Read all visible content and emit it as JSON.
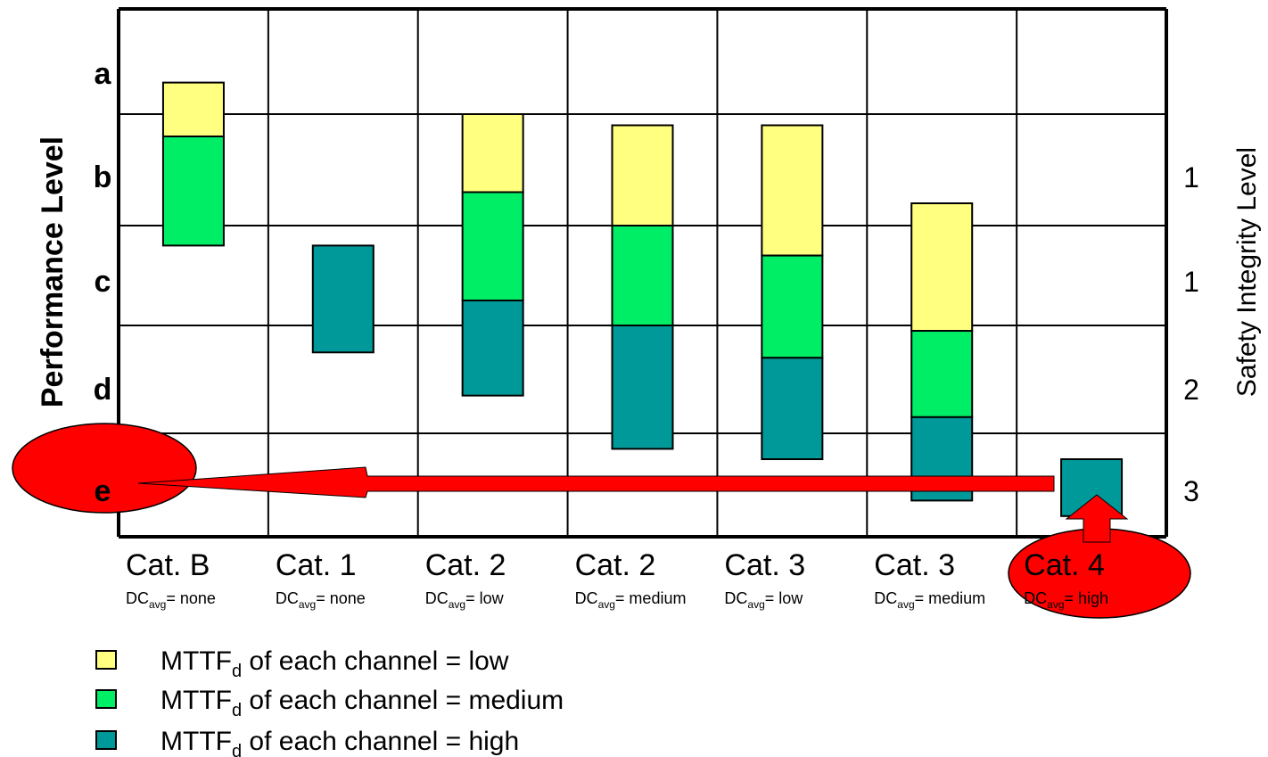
{
  "chart_data": {
    "type": "bar",
    "subtype": "floating-stacked-range",
    "y_axis_left": {
      "title": "Performance Level",
      "levels": [
        "a",
        "b",
        "c",
        "d",
        "e"
      ]
    },
    "y_axis_right": {
      "title": "Safety Integrity Level",
      "labels": [
        "1",
        "1",
        "2",
        "3"
      ]
    },
    "categories": [
      {
        "label": "Cat. B",
        "dc": "none"
      },
      {
        "label": "Cat. 1",
        "dc": "none"
      },
      {
        "label": "Cat. 2",
        "dc": "low"
      },
      {
        "label": "Cat. 2",
        "dc": "medium"
      },
      {
        "label": "Cat. 3",
        "dc": "low"
      },
      {
        "label": "Cat. 3",
        "dc": "medium"
      },
      {
        "label": "Cat. 4",
        "dc": "high"
      }
    ],
    "dc_prefix": "DC",
    "dc_sub": "avg",
    "dc_eq": "= ",
    "series": [
      {
        "name": "low",
        "color": "#ffff80",
        "ranges": [
          [
            0.7,
            1.2
          ],
          null,
          [
            1.0,
            1.7
          ],
          [
            1.1,
            2.0
          ],
          [
            1.1,
            2.3
          ],
          [
            1.8,
            3.05
          ],
          null
        ]
      },
      {
        "name": "medium",
        "color": "#00ee66",
        "ranges": [
          [
            1.2,
            2.2
          ],
          null,
          [
            1.7,
            2.75
          ],
          [
            2.0,
            3.0
          ],
          [
            2.3,
            3.3
          ],
          [
            3.05,
            3.85
          ],
          null
        ]
      },
      {
        "name": "high",
        "color": "#009999",
        "ranges": [
          null,
          [
            2.2,
            3.25
          ],
          [
            2.75,
            3.65
          ],
          [
            3.0,
            4.15
          ],
          [
            3.3,
            4.25
          ],
          [
            3.85,
            4.65
          ],
          [
            4.25,
            4.8
          ]
        ]
      }
    ],
    "legend": [
      {
        "swatch": "#ffff80",
        "pre": "MTTF",
        "sub": "d",
        "text": "of each channel = low"
      },
      {
        "swatch": "#00ee66",
        "pre": "MTTF",
        "sub": "d",
        "text": "of each channel = medium"
      },
      {
        "swatch": "#009999",
        "pre": "MTTF",
        "sub": "d",
        "text": "of each channel = high"
      }
    ],
    "annotations": [
      {
        "type": "arrow",
        "from": "Cat. 4",
        "to": "e",
        "color": "#ff0000"
      },
      {
        "type": "ellipse",
        "target": "e",
        "color": "#ff0000"
      },
      {
        "type": "ellipse",
        "target": "Cat. 4",
        "color": "#ff0000"
      }
    ],
    "grid": true,
    "legend_position": "bottom-left"
  }
}
